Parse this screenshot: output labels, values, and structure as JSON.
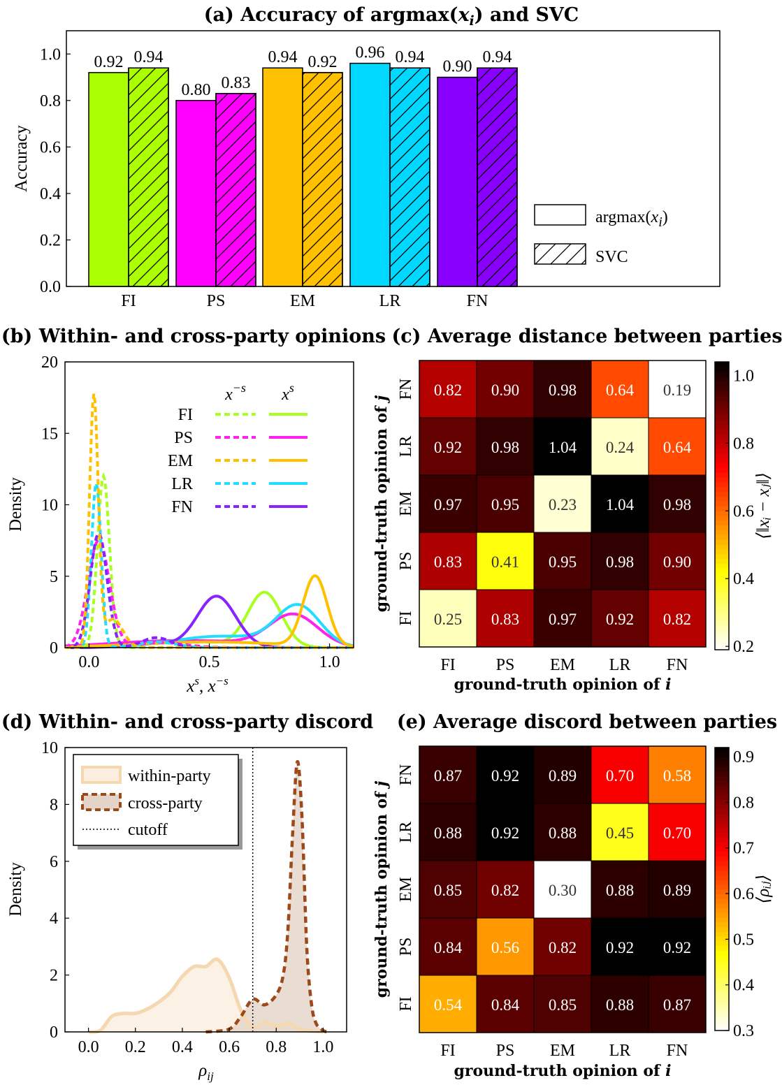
{
  "chart_data": [
    {
      "id": "a",
      "type": "bar",
      "title": "(a) Accuracy of argmax(x_i) and SVC",
      "title_parts": [
        "(a) Accuracy of argmax(",
        "x",
        "i",
        ") and SVC"
      ],
      "ylabel": "Accuracy",
      "ylim": [
        0,
        1.1
      ],
      "yticks": [
        "0.0",
        "0.2",
        "0.4",
        "0.6",
        "0.8",
        "1.0"
      ],
      "categories": [
        "FI",
        "PS",
        "EM",
        "LR",
        "FN"
      ],
      "colors": [
        "#aaff00",
        "#ff00ff",
        "#ffc000",
        "#00d8ff",
        "#8a00ff"
      ],
      "series": [
        {
          "name": "argmax(x_i)",
          "hatch": false,
          "values": [
            0.92,
            0.8,
            0.94,
            0.96,
            0.9
          ],
          "labels": [
            "0.92",
            "0.80",
            "0.94",
            "0.96",
            "0.90"
          ]
        },
        {
          "name": "SVC",
          "hatch": true,
          "values": [
            0.94,
            0.83,
            0.92,
            0.94,
            0.94
          ],
          "labels": [
            "0.94",
            "0.83",
            "0.92",
            "0.94",
            "0.94"
          ]
        }
      ],
      "legend": {
        "position": "lower-right",
        "entries": [
          {
            "prefix": "argmax(",
            "var": "x",
            "sub": "i",
            "suffix": ")"
          },
          {
            "prefix": "SVC"
          }
        ]
      }
    },
    {
      "id": "b",
      "type": "line",
      "title": "(b) Within- and cross-party opinions",
      "ylabel": "Density",
      "xlabel_parts": [
        "x",
        "s",
        ", ",
        "x",
        "−s"
      ],
      "xlim": [
        -0.1,
        1.1
      ],
      "ylim": [
        0,
        20
      ],
      "xticks": [
        "0.0",
        "0.5",
        "1.0"
      ],
      "yticks": [
        "0",
        "5",
        "10",
        "15",
        "20"
      ],
      "legend": {
        "position": "upper-right",
        "col_headers": [
          {
            "var": "x",
            "sup": "−s"
          },
          {
            "var": "x",
            "sup": "s"
          }
        ],
        "rows": [
          "FI",
          "PS",
          "EM",
          "LR",
          "FN"
        ]
      },
      "series": [
        {
          "name": "FI",
          "party": "x^-s",
          "dashed": true,
          "color": "#aaff22",
          "components": [
            [
              0.06,
              0.025,
              12.0
            ]
          ]
        },
        {
          "name": "PS",
          "party": "x^-s",
          "dashed": true,
          "color": "#ff22ee",
          "components": [
            [
              0.04,
              0.045,
              7.5
            ],
            [
              0.3,
              0.1,
              0.35
            ]
          ]
        },
        {
          "name": "EM",
          "party": "x^-s",
          "dashed": true,
          "color": "#ffc000",
          "components": [
            [
              0.02,
              0.018,
              17.5
            ],
            [
              0.1,
              0.04,
              2.0
            ]
          ]
        },
        {
          "name": "LR",
          "party": "x^-s",
          "dashed": true,
          "color": "#22ddff",
          "components": [
            [
              0.03,
              0.02,
              11.5
            ],
            [
              0.28,
              0.08,
              0.4
            ]
          ]
        },
        {
          "name": "FN",
          "party": "x^-s",
          "dashed": true,
          "color": "#8822ff",
          "components": [
            [
              0.04,
              0.035,
              8.0
            ],
            [
              0.28,
              0.06,
              0.7
            ]
          ]
        },
        {
          "name": "FI",
          "party": "x^s",
          "dashed": false,
          "color": "#aaff22",
          "components": [
            [
              0.73,
              0.07,
              3.8
            ],
            [
              0.35,
              0.2,
              0.5
            ]
          ]
        },
        {
          "name": "PS",
          "party": "x^s",
          "dashed": false,
          "color": "#ff22ee",
          "components": [
            [
              0.85,
              0.1,
              2.2
            ],
            [
              0.4,
              0.3,
              0.5
            ]
          ]
        },
        {
          "name": "EM",
          "party": "x^s",
          "dashed": false,
          "color": "#ffc000",
          "components": [
            [
              0.94,
              0.05,
              4.9
            ],
            [
              0.5,
              0.3,
              0.4
            ]
          ]
        },
        {
          "name": "LR",
          "party": "x^s",
          "dashed": false,
          "color": "#22ddff",
          "components": [
            [
              0.87,
              0.09,
              2.8
            ],
            [
              0.55,
              0.2,
              0.8
            ]
          ]
        },
        {
          "name": "FN",
          "party": "x^s",
          "dashed": false,
          "color": "#8822ff",
          "components": [
            [
              0.53,
              0.08,
              3.6
            ],
            [
              0.25,
              0.1,
              0.3
            ]
          ]
        }
      ]
    },
    {
      "id": "c",
      "type": "heatmap",
      "title": "(c) Average distance between parties",
      "xlabel": "ground-truth opinion of",
      "xlabel_var": "i",
      "ylabel": "ground-truth opinion of",
      "ylabel_var": "j",
      "x_categories": [
        "FI",
        "PS",
        "EM",
        "LR",
        "FN"
      ],
      "y_categories_top_to_bottom": [
        "FN",
        "LR",
        "EM",
        "PS",
        "FI"
      ],
      "values": [
        [
          0.82,
          0.9,
          0.98,
          0.64,
          0.19
        ],
        [
          0.92,
          0.98,
          1.04,
          0.24,
          0.64
        ],
        [
          0.97,
          0.95,
          0.23,
          1.04,
          0.98
        ],
        [
          0.83,
          0.41,
          0.95,
          0.98,
          0.9
        ],
        [
          0.25,
          0.83,
          0.97,
          0.92,
          0.82
        ]
      ],
      "labels": [
        [
          "0.82",
          "0.90",
          "0.98",
          "0.64",
          "0.19"
        ],
        [
          "0.92",
          "0.98",
          "1.04",
          "0.24",
          "0.64"
        ],
        [
          "0.97",
          "0.95",
          "0.23",
          "1.04",
          "0.98"
        ],
        [
          "0.83",
          "0.41",
          "0.95",
          "0.98",
          "0.90"
        ],
        [
          "0.25",
          "0.83",
          "0.97",
          "0.92",
          "0.82"
        ]
      ],
      "colorbar": {
        "range": [
          0.19,
          1.04
        ],
        "ticks": [
          0.2,
          0.4,
          0.6,
          0.8,
          1.0
        ],
        "tick_labels": [
          "0.2",
          "0.4",
          "0.6",
          "0.8",
          "1.0"
        ],
        "label": "⟨||x_i − x_j||⟩",
        "label_text": "⟨‖xᵢ − xⱼ‖⟩",
        "colormap": "hot_r"
      }
    },
    {
      "id": "d",
      "type": "area",
      "title": "(d) Within- and cross-party discord",
      "ylabel": "Density",
      "xlabel_parts": [
        "ρ",
        "ij"
      ],
      "xlim": [
        -0.1,
        1.1
      ],
      "ylim": [
        0,
        10
      ],
      "xticks": [
        "0.0",
        "0.2",
        "0.4",
        "0.6",
        "0.8",
        "1.0"
      ],
      "yticks": [
        "0",
        "2",
        "4",
        "6",
        "8",
        "10"
      ],
      "cutoff": 0.7,
      "legend": {
        "position": "upper-left",
        "entries": [
          "within-party",
          "cross-party",
          "cutoff"
        ]
      },
      "series": [
        {
          "name": "within-party",
          "color": "#f5d7b0",
          "fill": "#fbeede",
          "dashed": false,
          "x": [
            0.0,
            0.05,
            0.1,
            0.15,
            0.2,
            0.25,
            0.3,
            0.35,
            0.4,
            0.45,
            0.5,
            0.55,
            0.6,
            0.65,
            0.7,
            0.75,
            0.8,
            0.85,
            0.9,
            0.95,
            1.0
          ],
          "y": [
            0.0,
            0.05,
            0.55,
            0.65,
            0.65,
            0.8,
            1.05,
            1.4,
            1.95,
            2.3,
            2.3,
            2.55,
            1.9,
            0.75,
            0.15,
            0.35,
            0.2,
            0.3,
            0.1,
            0.03,
            0.0
          ]
        },
        {
          "name": "cross-party",
          "color": "#9c4a1a",
          "fill": "#e4d4c8",
          "dashed": true,
          "x": [
            0.5,
            0.6,
            0.65,
            0.7,
            0.75,
            0.8,
            0.83,
            0.85,
            0.87,
            0.89,
            0.91,
            0.93,
            0.95,
            0.97,
            1.0,
            1.02
          ],
          "y": [
            0.0,
            0.1,
            0.55,
            1.15,
            0.95,
            1.3,
            2.0,
            3.6,
            7.0,
            9.5,
            7.5,
            3.0,
            1.0,
            0.3,
            0.05,
            0.0
          ]
        }
      ]
    },
    {
      "id": "e",
      "type": "heatmap",
      "title": "(e) Average discord between parties",
      "xlabel": "ground-truth opinion of",
      "xlabel_var": "i",
      "ylabel": "ground-truth opinion of",
      "ylabel_var": "j",
      "x_categories": [
        "FI",
        "PS",
        "EM",
        "LR",
        "FN"
      ],
      "y_categories_top_to_bottom": [
        "FN",
        "LR",
        "EM",
        "PS",
        "FI"
      ],
      "values": [
        [
          0.87,
          0.92,
          0.89,
          0.7,
          0.58
        ],
        [
          0.88,
          0.92,
          0.88,
          0.45,
          0.7
        ],
        [
          0.85,
          0.82,
          0.3,
          0.88,
          0.89
        ],
        [
          0.84,
          0.56,
          0.82,
          0.92,
          0.92
        ],
        [
          0.54,
          0.84,
          0.85,
          0.88,
          0.87
        ]
      ],
      "labels": [
        [
          "0.87",
          "0.92",
          "0.89",
          "0.70",
          "0.58"
        ],
        [
          "0.88",
          "0.92",
          "0.88",
          "0.45",
          "0.70"
        ],
        [
          "0.85",
          "0.82",
          "0.30",
          "0.88",
          "0.89"
        ],
        [
          "0.84",
          "0.56",
          "0.82",
          "0.92",
          "0.92"
        ],
        [
          "0.54",
          "0.84",
          "0.85",
          "0.88",
          "0.87"
        ]
      ],
      "colorbar": {
        "range": [
          0.3,
          0.92
        ],
        "ticks": [
          0.3,
          0.4,
          0.5,
          0.6,
          0.7,
          0.8,
          0.9
        ],
        "tick_labels": [
          "0.3",
          "0.4",
          "0.5",
          "0.6",
          "0.7",
          "0.8",
          "0.9"
        ],
        "label": "⟨ρ_ij⟩",
        "label_text": "⟨ρᵢⱼ⟩",
        "colormap": "hot_r"
      }
    }
  ]
}
